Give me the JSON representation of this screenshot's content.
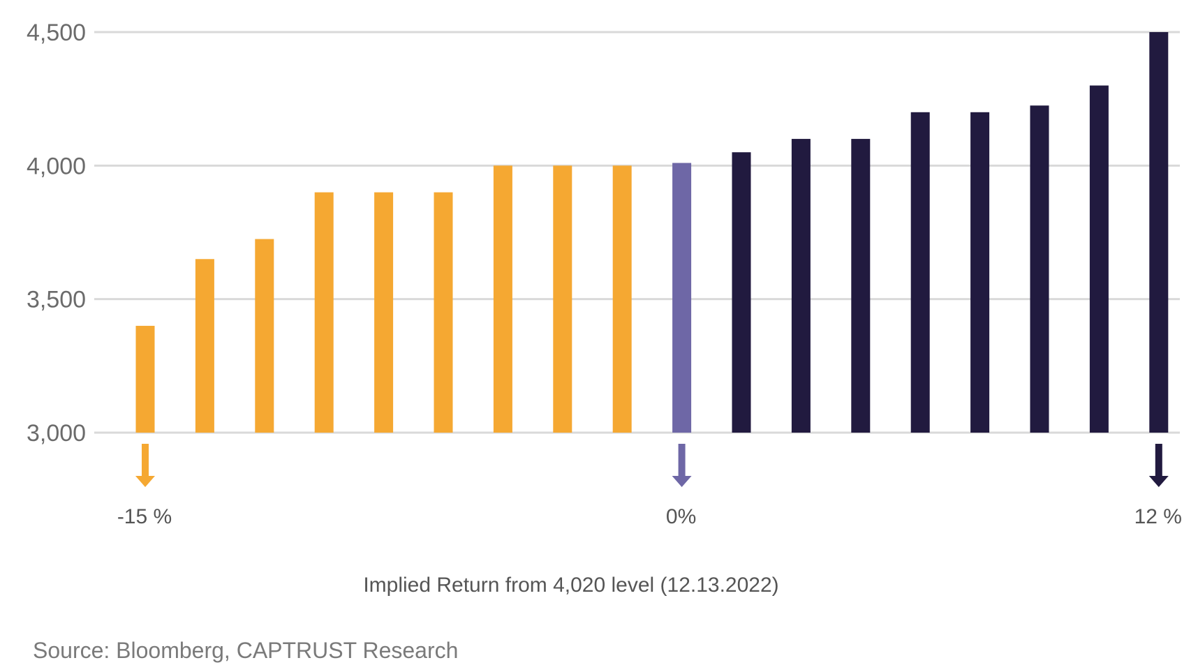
{
  "chart_data": {
    "type": "bar",
    "title": "",
    "xlabel": "Implied Return from 4,020 level (12.13.2022)",
    "ylabel": "",
    "ylim": [
      3000,
      4500
    ],
    "yticks": [
      3000,
      3500,
      4000,
      4500
    ],
    "ytick_labels": [
      "3,000",
      "3,500",
      "4,000",
      "4,500"
    ],
    "grid": true,
    "values": [
      3400,
      3650,
      3725,
      3900,
      3900,
      3900,
      4000,
      4000,
      4000,
      4010,
      4050,
      4100,
      4100,
      4200,
      4200,
      4225,
      4300,
      4500
    ],
    "groups": [
      "negative",
      "negative",
      "negative",
      "negative",
      "negative",
      "negative",
      "negative",
      "negative",
      "negative",
      "neutral",
      "positive",
      "positive",
      "positive",
      "positive",
      "positive",
      "positive",
      "positive",
      "positive"
    ],
    "colors": {
      "negative": "#f5a832",
      "neutral": "#6e67a6",
      "positive": "#211a3f",
      "grid": "#d9d9d9"
    },
    "markers": [
      {
        "label": "-15 %",
        "bar_index": 0,
        "group": "negative"
      },
      {
        "label": "0%",
        "bar_index": 9,
        "group": "neutral"
      },
      {
        "label": "12 %",
        "bar_index": 17,
        "group": "positive"
      }
    ],
    "source": "Source: Bloomberg, CAPTRUST Research"
  }
}
